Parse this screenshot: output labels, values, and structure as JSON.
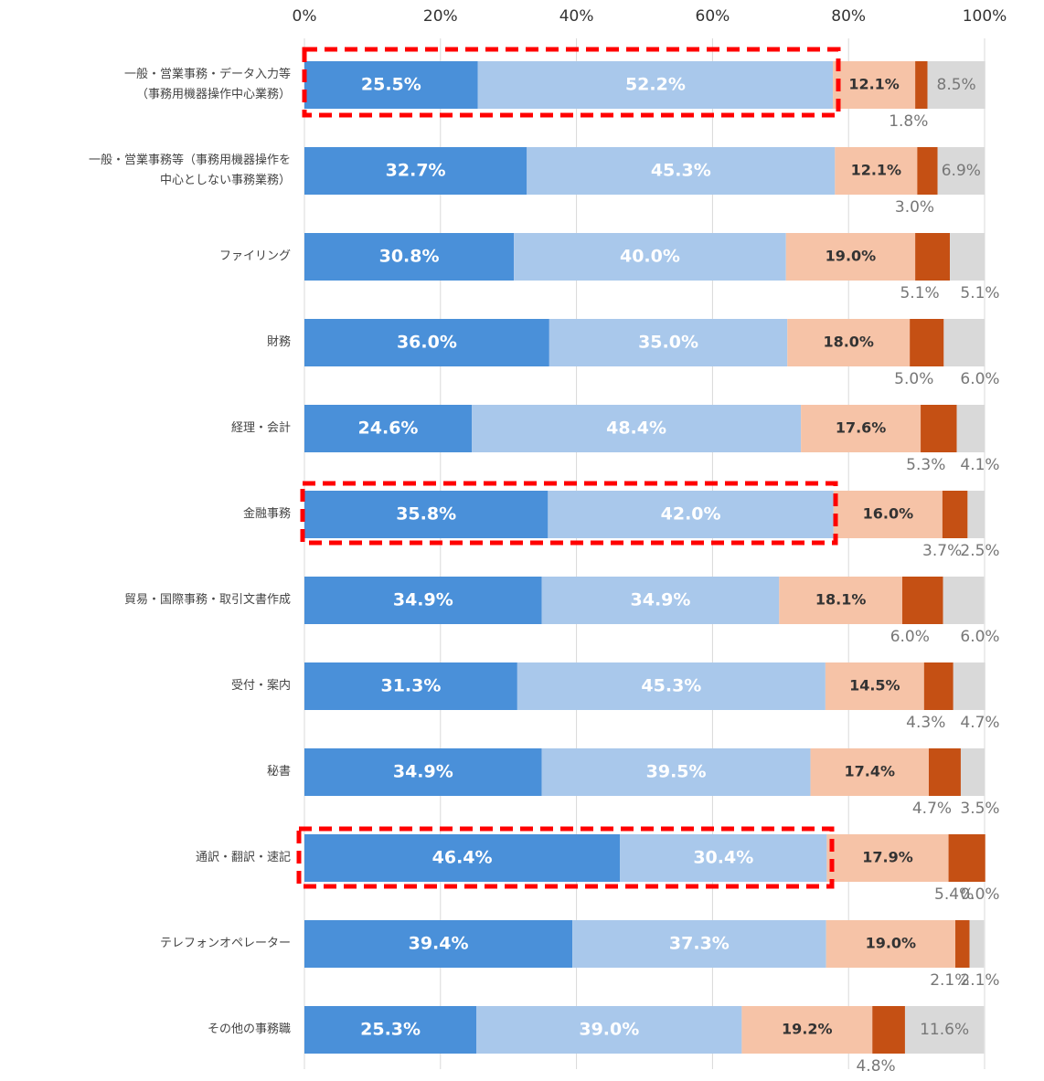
{
  "chart_data": {
    "type": "stacked_barh",
    "categories": [
      "一般・営業事務・データ入力等\n（事務用機器操作中心業務）",
      "一般・営業事務等（事務用機器操作を\n中心としない事務業務）",
      "ファイリング",
      "財務",
      "経理・会計",
      "金融事務",
      "貿易・国際事務・取引文書作成",
      "受付・案内",
      "秘書",
      "通訳・翻訳・速記",
      "テレフォンオペレーター",
      "その他の事務職"
    ],
    "series": [
      {
        "color": "#4a90d9",
        "values": [
          25.5,
          32.7,
          30.8,
          36.0,
          24.6,
          35.8,
          34.9,
          31.3,
          34.9,
          46.4,
          39.4,
          25.3
        ],
        "value_labels": [
          "25.5%",
          "32.7%",
          "30.8%",
          "36.0%",
          "24.6%",
          "35.8%",
          "34.9%",
          "31.3%",
          "34.9%",
          "46.4%",
          "39.4%",
          "25.3%"
        ]
      },
      {
        "color": "#a9c8eb",
        "values": [
          52.2,
          45.3,
          40.0,
          35.0,
          48.4,
          42.0,
          34.9,
          45.3,
          39.5,
          30.4,
          37.3,
          39.0
        ],
        "value_labels": [
          "52.2%",
          "45.3%",
          "40.0%",
          "35.0%",
          "48.4%",
          "42.0%",
          "34.9%",
          "45.3%",
          "39.5%",
          "30.4%",
          "37.3%",
          "39.0%"
        ]
      },
      {
        "color": "#f6c3a7",
        "values": [
          12.1,
          12.1,
          19.0,
          18.0,
          17.6,
          16.0,
          18.1,
          14.5,
          17.4,
          17.9,
          19.0,
          19.2
        ],
        "value_labels": [
          "12.1%",
          "12.1%",
          "19.0%",
          "18.0%",
          "17.6%",
          "16.0%",
          "18.1%",
          "14.5%",
          "17.4%",
          "17.9%",
          "19.0%",
          "19.2%"
        ]
      },
      {
        "color": "#c55014",
        "values": [
          1.8,
          3.0,
          5.1,
          5.0,
          5.3,
          3.7,
          6.0,
          4.3,
          4.7,
          5.4,
          2.1,
          4.8
        ],
        "value_labels": [
          "1.8%",
          "3.0%",
          "5.1%",
          "5.0%",
          "5.3%",
          "3.7%",
          "6.0%",
          "4.3%",
          "4.7%",
          "5.4%",
          "2.1%",
          "4.8%"
        ]
      },
      {
        "color": "#d9d9d9",
        "values": [
          8.5,
          6.9,
          5.1,
          6.0,
          4.1,
          2.5,
          6.0,
          4.7,
          3.5,
          0.0,
          2.1,
          11.6
        ],
        "value_labels": [
          "8.5%",
          "6.9%",
          "5.1%",
          "6.0%",
          "4.1%",
          "2.5%",
          "6.0%",
          "4.7%",
          "3.5%",
          "0.0%",
          "2.1%",
          "11.6%"
        ]
      }
    ],
    "xlim": [
      0,
      100
    ],
    "xticks": [
      {
        "value": 0,
        "label": "0%"
      },
      {
        "value": 20,
        "label": "20%"
      },
      {
        "value": 40,
        "label": "40%"
      },
      {
        "value": 60,
        "label": "60%"
      },
      {
        "value": 80,
        "label": "80%"
      },
      {
        "value": 100,
        "label": "100%"
      }
    ],
    "grid": true
  }
}
